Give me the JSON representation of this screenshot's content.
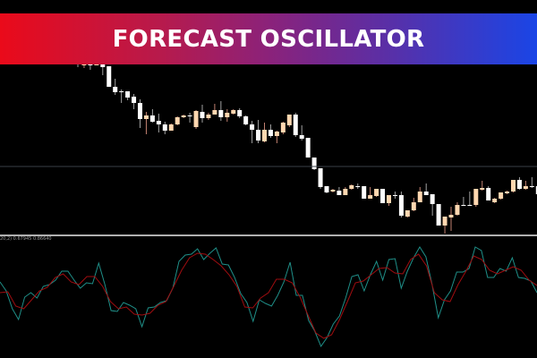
{
  "banner": {
    "title": "FORECAST OSCILLATOR"
  },
  "indicator_label": "20,2) 0.67945 0.86640",
  "colors": {
    "bull_candle": "#ffd7b0",
    "bear_candle": "#ffffff",
    "oscillator": "#1f8f88",
    "signal": "#a00d10",
    "level_line": "#3a3f47",
    "separator": "#b0b0b0"
  },
  "chart_data": [
    {
      "type": "candlestick",
      "title": "",
      "axes": "none",
      "grid": false,
      "candles_ohlc": [
        [
          229,
          230,
          225,
          229
        ],
        [
          227,
          230,
          224,
          230
        ],
        [
          230,
          230,
          222,
          227
        ],
        [
          227,
          230,
          227,
          230
        ],
        [
          230,
          230,
          216,
          225
        ],
        [
          226,
          226,
          203,
          203
        ],
        [
          203,
          212,
          194,
          197
        ],
        [
          198,
          200,
          185,
          198
        ],
        [
          198,
          198,
          188,
          191
        ],
        [
          192,
          195,
          178,
          185
        ],
        [
          185,
          189,
          157,
          167
        ],
        [
          167,
          175,
          150,
          171
        ],
        [
          171,
          178,
          163,
          164
        ],
        [
          165,
          173,
          152,
          161
        ],
        [
          161,
          164,
          150,
          154
        ],
        [
          154,
          162,
          154,
          161
        ],
        [
          161,
          170,
          160,
          169
        ],
        [
          169,
          172,
          168,
          171
        ],
        [
          171,
          174,
          163,
          171
        ],
        [
          158,
          177,
          156,
          176
        ],
        [
          175,
          183,
          163,
          168
        ],
        [
          168,
          174,
          166,
          172
        ],
        [
          172,
          184,
          172,
          177
        ],
        [
          177,
          187,
          165,
          169
        ],
        [
          169,
          178,
          164,
          174
        ],
        [
          173,
          178,
          172,
          177
        ],
        [
          177,
          179,
          168,
          170
        ],
        [
          170,
          171,
          160,
          161
        ],
        [
          161,
          165,
          140,
          155
        ],
        [
          155,
          166,
          140,
          143
        ],
        [
          142,
          163,
          141,
          155
        ],
        [
          155,
          161,
          146,
          148
        ],
        [
          148,
          154,
          140,
          153
        ],
        [
          152,
          164,
          150,
          163
        ],
        [
          160,
          172,
          158,
          172
        ],
        [
          172,
          174,
          147,
          149
        ],
        [
          149,
          160,
          143,
          145
        ],
        [
          146,
          146,
          124,
          124
        ],
        [
          124,
          124,
          110,
          111
        ],
        [
          112,
          112,
          89,
          91
        ],
        [
          92,
          92,
          84,
          85
        ],
        [
          86,
          89,
          85,
          88
        ],
        [
          87,
          91,
          82,
          82
        ],
        [
          82,
          91,
          82,
          89
        ],
        [
          89,
          94,
          88,
          93
        ],
        [
          92,
          95,
          89,
          92
        ],
        [
          92,
          92,
          78,
          78
        ],
        [
          78,
          91,
          78,
          82
        ],
        [
          81,
          89,
          80,
          89
        ],
        [
          89,
          89,
          73,
          73
        ],
        [
          73,
          82,
          70,
          82
        ],
        [
          82,
          86,
          78,
          82
        ],
        [
          82,
          86,
          57,
          59
        ],
        [
          58,
          65,
          57,
          65
        ],
        [
          65,
          79,
          64,
          74
        ],
        [
          74,
          91,
          74,
          86
        ],
        [
          86,
          95,
          82,
          82
        ],
        [
          83,
          83,
          59,
          72
        ],
        [
          72,
          72,
          48,
          48
        ],
        [
          48,
          58,
          39,
          58
        ],
        [
          57,
          69,
          42,
          60
        ],
        [
          60,
          74,
          59,
          71
        ],
        [
          71,
          80,
          70,
          71
        ],
        [
          71,
          86,
          70,
          71
        ],
        [
          71,
          89,
          69,
          89
        ],
        [
          88,
          98,
          87,
          90
        ],
        [
          90,
          92,
          76,
          76
        ],
        [
          74,
          79,
          73,
          78
        ],
        [
          78,
          85,
          77,
          85
        ],
        [
          84,
          87,
          83,
          86
        ],
        [
          86,
          99,
          85,
          99
        ],
        [
          99,
          102,
          88,
          89
        ],
        [
          89,
          98,
          88,
          92
        ],
        [
          92,
          102,
          90,
          92
        ],
        [
          92,
          92,
          83,
          83
        ]
      ],
      "level_line": 114
    },
    {
      "type": "line",
      "title": "",
      "axes": "none",
      "grid": false,
      "series": [
        {
          "color": "#1f8f88",
          "values": [
            85,
            75,
            55,
            43,
            68,
            73,
            67,
            80,
            82,
            87,
            97,
            97,
            87,
            78,
            84,
            83,
            106,
            82,
            53,
            52,
            62,
            59,
            55,
            35,
            56,
            57,
            62,
            64,
            78,
            108,
            115,
            116,
            122,
            110,
            117,
            123,
            105,
            104,
            90,
            72,
            62,
            41,
            65,
            61,
            58,
            70,
            85,
            107,
            70,
            70,
            42,
            30,
            13,
            23,
            38,
            47,
            67,
            91,
            93,
            75,
            93,
            108,
            87,
            110,
            111,
            78,
            97,
            112,
            124,
            113,
            82,
            45,
            65,
            75,
            96,
            96,
            100,
            124,
            120,
            90,
            90,
            100,
            97,
            112,
            90,
            89,
            86,
            73
          ]
        },
        {
          "color": "#a00d10",
          "values": [
            73,
            74,
            58,
            55,
            65,
            75,
            79,
            90,
            94,
            85,
            82,
            91,
            91,
            80,
            63,
            55,
            57,
            49,
            48,
            50,
            59,
            63,
            80,
            98,
            112,
            117,
            116,
            110,
            103,
            93,
            80,
            57,
            56,
            67,
            73,
            88,
            88,
            84,
            68,
            48,
            28,
            22,
            26,
            43,
            63,
            84,
            86,
            93,
            100,
            101,
            95,
            94,
            110,
            116,
            103,
            73,
            65,
            63,
            82,
            97,
            114,
            110,
            98,
            94,
            98,
            102,
            98,
            87,
            81
          ]
        }
      ]
    }
  ]
}
